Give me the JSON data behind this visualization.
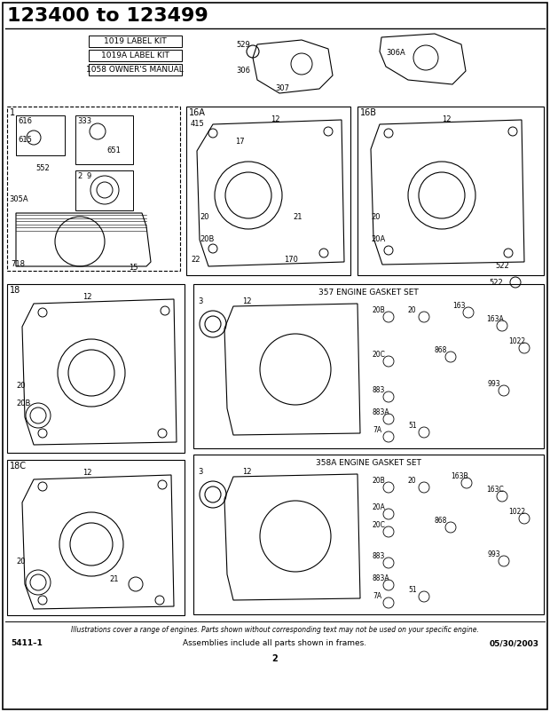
{
  "title": "123400 to 123499",
  "bg_color": "#ffffff",
  "border_color": "#000000",
  "footer_italic": "Illustrations cover a range of engines. Parts shown without corresponding text may not be used on your specific engine.",
  "footer_left": "5411–1",
  "footer_center": "Assemblies include all parts shown in frames.",
  "footer_right": "05/30/2003",
  "footer_page": "2",
  "label_kits": [
    "1019 LABEL KIT",
    "1019A LABEL KIT",
    "1058 OWNER'S MANUAL"
  ],
  "section1_label": "1",
  "section1_parts": [
    "616",
    "615",
    "333",
    "651",
    "552",
    "2",
    "9",
    "305A",
    "718",
    "15"
  ],
  "section16A_label": "16A",
  "section16A_parts": [
    "415",
    "12",
    "17",
    "20",
    "20B",
    "21",
    "22",
    "170"
  ],
  "section16B_label": "16B",
  "section16B_parts": [
    "12",
    "20",
    "20A",
    "522"
  ],
  "section18_label": "18",
  "section18_parts": [
    "12",
    "20",
    "20B"
  ],
  "section18C_label": "18C",
  "section18C_parts": [
    "12",
    "20",
    "21"
  ],
  "top_parts": [
    "529",
    "306",
    "307",
    "306A"
  ],
  "gasket_357_label": "357 ENGINE GASKET SET",
  "gasket_357_parts": [
    "3",
    "12",
    "20B",
    "20",
    "20C",
    "163",
    "163A",
    "868",
    "883",
    "883A",
    "993",
    "51",
    "7A",
    "1022"
  ],
  "gasket_358A_label": "358A ENGINE GASKET SET",
  "gasket_358A_parts": [
    "3",
    "12",
    "20B",
    "20",
    "20A",
    "20C",
    "163B",
    "163C",
    "868",
    "883",
    "883A",
    "993",
    "51",
    "7A",
    "1022"
  ]
}
